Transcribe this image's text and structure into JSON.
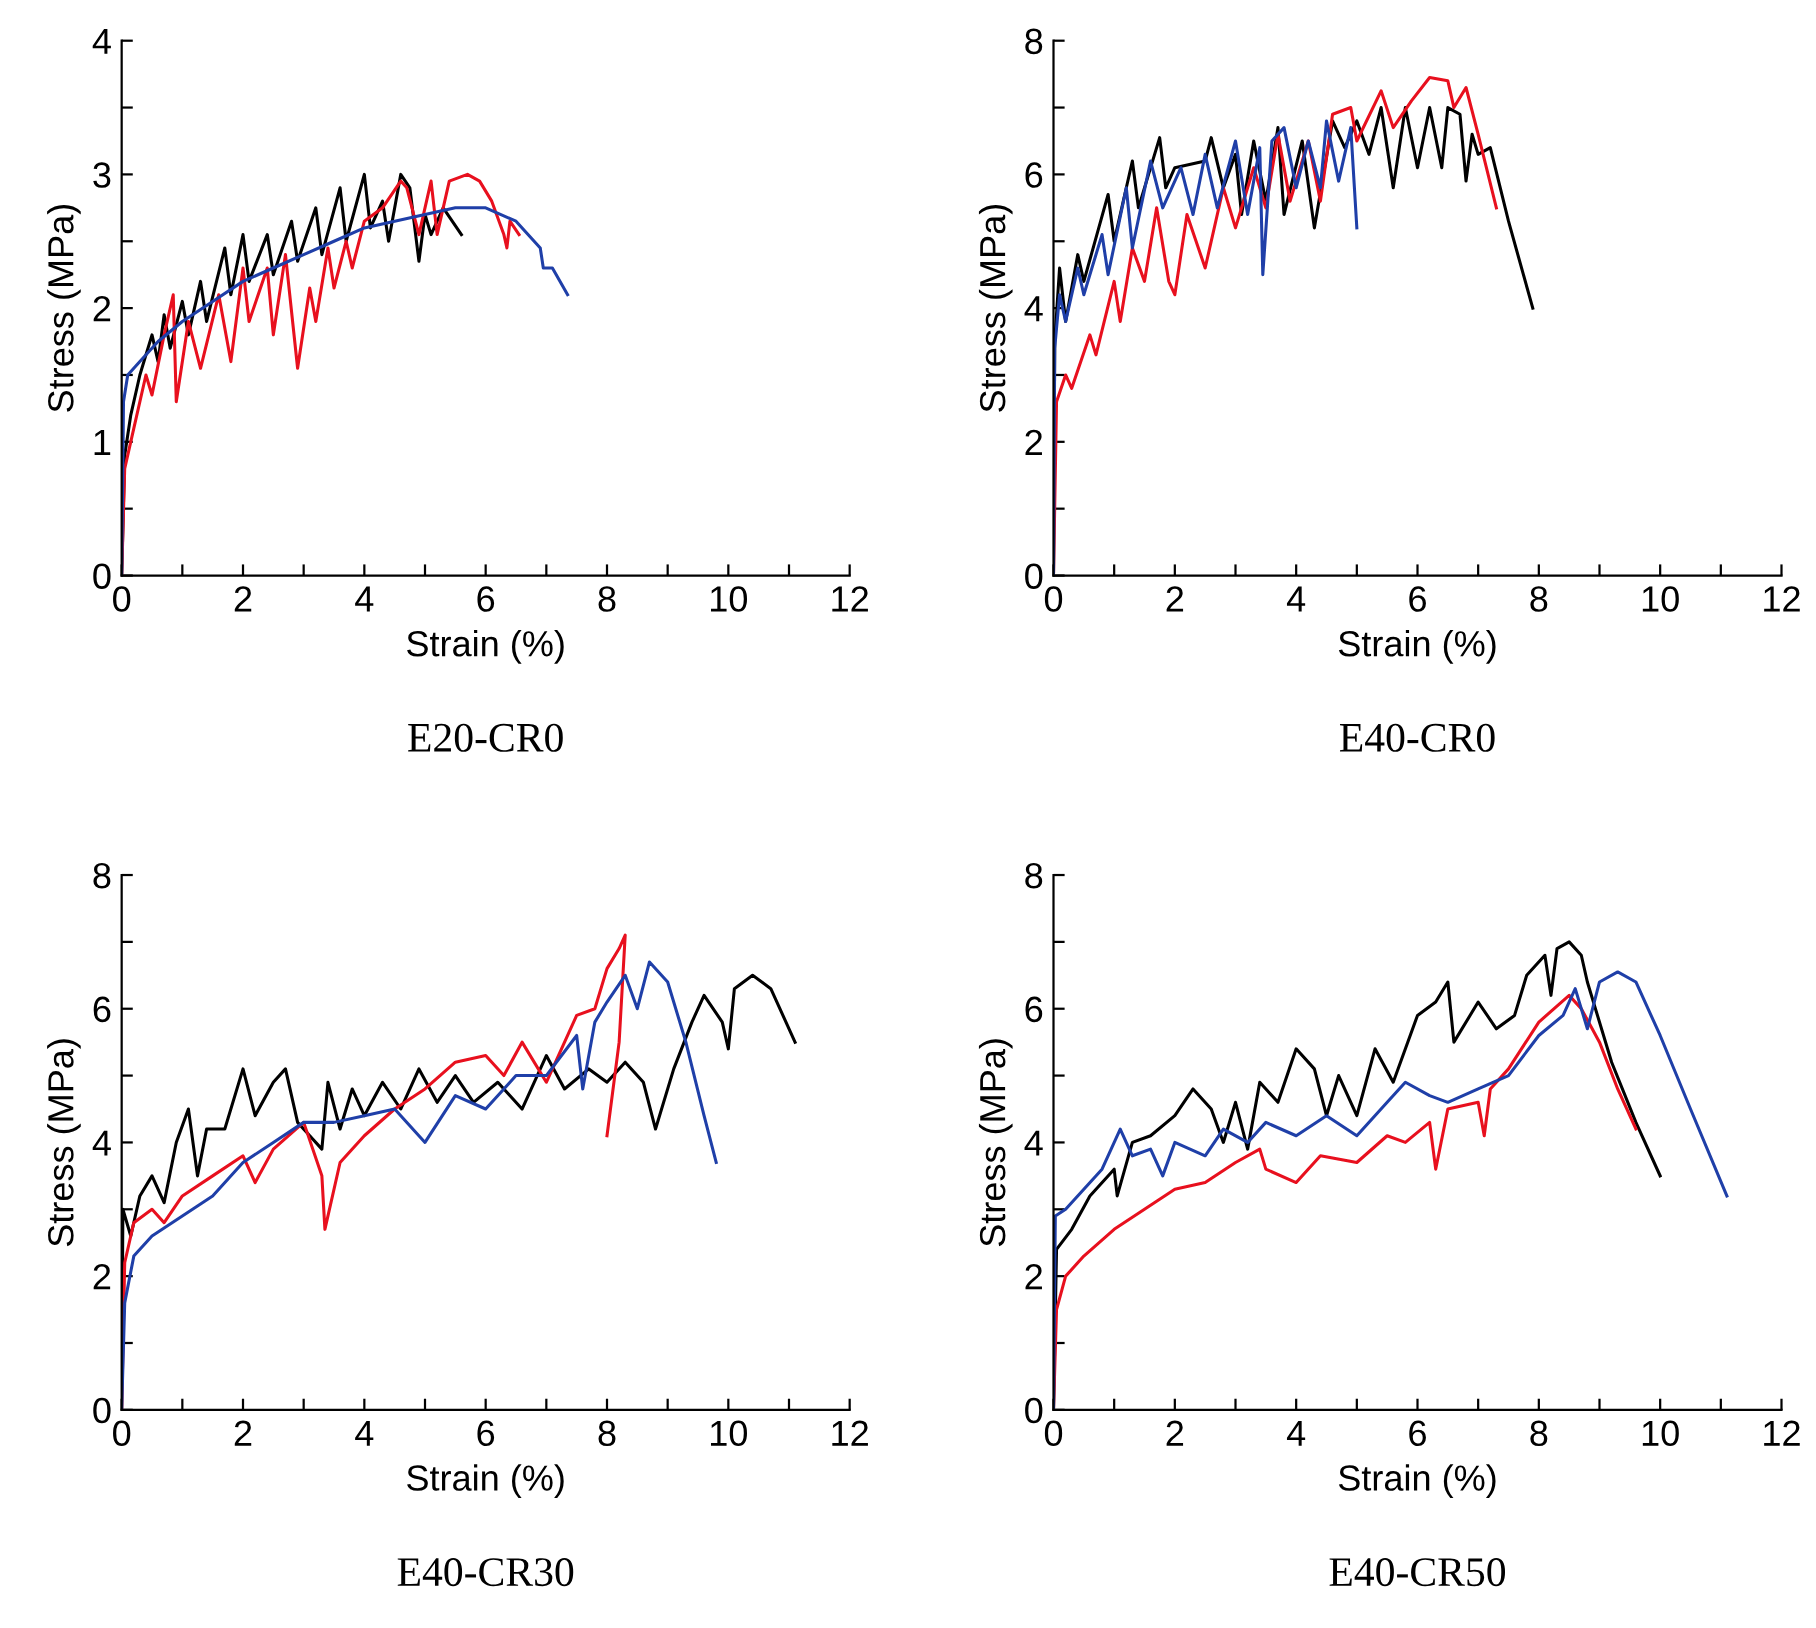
{
  "chart_data": [
    {
      "type": "line",
      "title": "E20-CR0",
      "xlabel": "Strain (%)",
      "ylabel": "Stress (MPa)",
      "xlim": [
        0,
        12
      ],
      "ylim": [
        0,
        4
      ],
      "xticks": [
        0,
        {
          "value": 1,
          "label": null
        },
        2,
        {
          "value": 3,
          "label": null
        },
        4,
        {
          "value": 5,
          "label": null
        },
        6,
        {
          "value": 7,
          "label": null
        },
        8,
        {
          "value": 9,
          "label": null
        },
        10,
        {
          "value": 11,
          "label": null
        },
        12
      ],
      "yticks": [
        0,
        {
          "value": 0.5,
          "label": null
        },
        1,
        {
          "value": 1.5,
          "label": null
        },
        2,
        {
          "value": 2.5,
          "label": null
        },
        3,
        {
          "value": 3.5,
          "label": null
        },
        4
      ],
      "grid": false,
      "legend": false,
      "marker": "none",
      "line_style": "solid",
      "series": [
        {
          "color": "#000000",
          "x": [
            0,
            0.05,
            0.15,
            0.3,
            0.5,
            0.6,
            0.7,
            0.8,
            1.0,
            1.1,
            1.3,
            1.4,
            1.7,
            1.8,
            2.0,
            2.1,
            2.4,
            2.5,
            2.8,
            2.9,
            3.2,
            3.3,
            3.6,
            3.7,
            4.0,
            4.1,
            4.3,
            4.4,
            4.6,
            4.75,
            4.9,
            5.0,
            5.1,
            5.3,
            5.6
          ],
          "values": [
            0,
            0.9,
            1.2,
            1.5,
            1.8,
            1.6,
            1.95,
            1.7,
            2.05,
            1.8,
            2.2,
            1.9,
            2.45,
            2.1,
            2.55,
            2.2,
            2.55,
            2.25,
            2.65,
            2.35,
            2.75,
            2.4,
            2.9,
            2.5,
            3.0,
            2.6,
            2.8,
            2.5,
            3.0,
            2.9,
            2.35,
            2.7,
            2.55,
            2.75,
            2.55
          ]
        },
        {
          "color": "#e8101e",
          "x": [
            0,
            0.05,
            0.2,
            0.4,
            0.5,
            0.7,
            0.85,
            0.9,
            1.1,
            1.3,
            1.6,
            1.8,
            2.0,
            2.1,
            2.4,
            2.5,
            2.7,
            2.9,
            3.1,
            3.2,
            3.4,
            3.5,
            3.7,
            3.8,
            4.0,
            4.3,
            4.6,
            4.7,
            4.9,
            5.1,
            5.2,
            5.4,
            5.7,
            5.9,
            6.1,
            6.3,
            6.35,
            6.4,
            6.55
          ],
          "values": [
            0,
            0.8,
            1.1,
            1.5,
            1.35,
            1.8,
            2.1,
            1.3,
            1.9,
            1.55,
            2.1,
            1.6,
            2.3,
            1.9,
            2.3,
            1.8,
            2.4,
            1.55,
            2.15,
            1.9,
            2.45,
            2.15,
            2.5,
            2.3,
            2.65,
            2.75,
            2.95,
            2.9,
            2.55,
            2.95,
            2.55,
            2.95,
            3.0,
            2.95,
            2.8,
            2.55,
            2.45,
            2.65,
            2.55
          ]
        },
        {
          "color": "#1f3fa8",
          "x": [
            0,
            0.03,
            0.1,
            0.3,
            0.6,
            1.0,
            1.5,
            2.0,
            2.5,
            3.0,
            3.5,
            4.0,
            4.5,
            5.0,
            5.5,
            6.0,
            6.5,
            6.9,
            6.95,
            7.1,
            7.35
          ],
          "values": [
            0,
            1.3,
            1.5,
            1.6,
            1.75,
            1.9,
            2.05,
            2.2,
            2.3,
            2.4,
            2.5,
            2.6,
            2.65,
            2.7,
            2.75,
            2.75,
            2.65,
            2.45,
            2.3,
            2.3,
            2.1
          ]
        }
      ]
    },
    {
      "type": "line",
      "title": "E40-CR0",
      "xlabel": "Strain (%)",
      "ylabel": "Stress (MPa)",
      "xlim": [
        0,
        12
      ],
      "ylim": [
        0,
        8
      ],
      "xticks": [
        0,
        {
          "value": 1,
          "label": null
        },
        2,
        {
          "value": 3,
          "label": null
        },
        4,
        {
          "value": 5,
          "label": null
        },
        6,
        {
          "value": 7,
          "label": null
        },
        8,
        {
          "value": 9,
          "label": null
        },
        10,
        {
          "value": 11,
          "label": null
        },
        12
      ],
      "yticks": [
        0,
        {
          "value": 1,
          "label": null
        },
        2,
        {
          "value": 3,
          "label": null
        },
        4,
        {
          "value": 5,
          "label": null
        },
        6,
        {
          "value": 7,
          "label": null
        },
        8
      ],
      "grid": false,
      "legend": false,
      "marker": "none",
      "line_style": "solid",
      "series": [
        {
          "color": "#000000",
          "x": [
            0,
            0.02,
            0.1,
            0.2,
            0.4,
            0.5,
            0.9,
            1.0,
            1.3,
            1.4,
            1.75,
            1.85,
            2.0,
            2.5,
            2.6,
            2.8,
            3.0,
            3.1,
            3.3,
            3.5,
            3.7,
            3.8,
            4.1,
            4.3,
            4.6,
            4.8,
            5.0,
            5.2,
            5.4,
            5.6,
            5.8,
            6.0,
            6.2,
            6.4,
            6.5,
            6.7,
            6.8,
            6.9,
            7.0,
            7.2,
            7.5,
            7.9
          ],
          "values": [
            0,
            3.5,
            4.6,
            3.8,
            4.8,
            4.4,
            5.7,
            5.0,
            6.2,
            5.5,
            6.55,
            5.8,
            6.1,
            6.2,
            6.55,
            5.8,
            6.3,
            5.4,
            6.5,
            5.6,
            6.7,
            5.4,
            6.5,
            5.2,
            6.8,
            6.4,
            6.8,
            6.3,
            7.0,
            5.8,
            7.0,
            6.1,
            7.0,
            6.1,
            7.0,
            6.9,
            5.9,
            6.6,
            6.3,
            6.4,
            5.3,
            4.0
          ]
        },
        {
          "color": "#e8101e",
          "x": [
            0,
            0.05,
            0.2,
            0.3,
            0.6,
            0.7,
            1.0,
            1.1,
            1.3,
            1.5,
            1.7,
            1.9,
            2.0,
            2.2,
            2.5,
            2.8,
            3.0,
            3.3,
            3.5,
            3.7,
            3.9,
            4.2,
            4.4,
            4.6,
            4.9,
            5.0,
            5.4,
            5.6,
            5.9,
            6.2,
            6.5,
            6.6,
            6.8,
            7.0,
            7.3
          ],
          "values": [
            0,
            2.6,
            3.0,
            2.8,
            3.6,
            3.3,
            4.4,
            3.8,
            4.9,
            4.4,
            5.5,
            4.4,
            4.2,
            5.4,
            4.6,
            5.8,
            5.2,
            6.1,
            5.5,
            6.6,
            5.6,
            6.5,
            5.6,
            6.9,
            7.0,
            6.5,
            7.25,
            6.7,
            7.1,
            7.45,
            7.4,
            7.0,
            7.3,
            6.6,
            5.5
          ]
        },
        {
          "color": "#1f3fa8",
          "x": [
            0,
            0.02,
            0.1,
            0.2,
            0.4,
            0.5,
            0.8,
            0.9,
            1.2,
            1.3,
            1.6,
            1.8,
            2.1,
            2.3,
            2.5,
            2.7,
            3.0,
            3.2,
            3.4,
            3.45,
            3.6,
            3.8,
            4.0,
            4.2,
            4.4,
            4.5,
            4.7,
            4.9,
            5.0
          ],
          "values": [
            0,
            3.4,
            4.2,
            3.8,
            4.6,
            4.2,
            5.1,
            4.5,
            5.8,
            4.9,
            6.2,
            5.5,
            6.1,
            5.4,
            6.3,
            5.5,
            6.5,
            5.4,
            6.4,
            4.5,
            6.5,
            6.7,
            5.8,
            6.5,
            5.8,
            6.8,
            5.9,
            6.7,
            5.2
          ]
        }
      ]
    },
    {
      "type": "line",
      "title": "E40-CR30",
      "xlabel": "Strain (%)",
      "ylabel": "Stress (MPa)",
      "xlim": [
        0,
        12
      ],
      "ylim": [
        0,
        8
      ],
      "xticks": [
        0,
        {
          "value": 1,
          "label": null
        },
        2,
        {
          "value": 3,
          "label": null
        },
        4,
        {
          "value": 5,
          "label": null
        },
        6,
        {
          "value": 7,
          "label": null
        },
        8,
        {
          "value": 9,
          "label": null
        },
        10,
        {
          "value": 11,
          "label": null
        },
        12
      ],
      "yticks": [
        0,
        {
          "value": 1,
          "label": null
        },
        2,
        {
          "value": 3,
          "label": null
        },
        4,
        {
          "value": 5,
          "label": null
        },
        6,
        {
          "value": 7,
          "label": null
        },
        8
      ],
      "grid": false,
      "legend": false,
      "marker": "none",
      "line_style": "solid",
      "series": [
        {
          "color": "#000000",
          "x": [
            0,
            0.02,
            0.15,
            0.3,
            0.5,
            0.7,
            0.9,
            1.1,
            1.25,
            1.4,
            1.7,
            2.0,
            2.2,
            2.5,
            2.7,
            2.9,
            3.1,
            3.3,
            3.4,
            3.6,
            3.8,
            4.0,
            4.3,
            4.6,
            4.9,
            5.2,
            5.5,
            5.8,
            6.2,
            6.6,
            7.0,
            7.3,
            7.7,
            8.0,
            8.3,
            8.6,
            8.8,
            9.1,
            9.4,
            9.6,
            9.9,
            10.0,
            10.1,
            10.4,
            10.7,
            11.1
          ],
          "values": [
            0,
            3.0,
            2.6,
            3.2,
            3.5,
            3.1,
            4.0,
            4.5,
            3.5,
            4.2,
            4.2,
            5.1,
            4.4,
            4.9,
            5.1,
            4.3,
            4.1,
            3.9,
            4.9,
            4.2,
            4.8,
            4.4,
            4.9,
            4.5,
            5.1,
            4.6,
            5.0,
            4.6,
            4.9,
            4.5,
            5.3,
            4.8,
            5.1,
            4.9,
            5.2,
            4.9,
            4.2,
            5.1,
            5.8,
            6.2,
            5.8,
            5.4,
            6.3,
            6.5,
            6.3,
            5.5
          ]
        },
        {
          "color": "#e8101e",
          "x": [
            0,
            0.05,
            0.2,
            0.5,
            0.7,
            1.0,
            1.5,
            2.0,
            2.2,
            2.5,
            3.0,
            3.3,
            3.35,
            3.6,
            4.0,
            4.5,
            5.0,
            5.5,
            6.0,
            6.3,
            6.6,
            7.0,
            7.5,
            7.8,
            8.0,
            8.2,
            8.3,
            8.2,
            8.0
          ],
          "values": [
            0,
            2.2,
            2.8,
            3.0,
            2.8,
            3.2,
            3.5,
            3.8,
            3.4,
            3.9,
            4.3,
            3.5,
            2.7,
            3.7,
            4.1,
            4.5,
            4.8,
            5.2,
            5.3,
            5.0,
            5.5,
            4.9,
            5.9,
            6.0,
            6.6,
            6.9,
            7.1,
            5.5,
            4.1
          ]
        },
        {
          "color": "#1f3fa8",
          "x": [
            0,
            0.05,
            0.2,
            0.5,
            1.0,
            1.5,
            2.0,
            2.5,
            3.0,
            3.5,
            4.0,
            4.5,
            5.0,
            5.5,
            6.0,
            6.5,
            7.0,
            7.5,
            7.6,
            7.8,
            8.0,
            8.3,
            8.5,
            8.7,
            9.0,
            9.3,
            9.6,
            9.8
          ],
          "values": [
            0,
            1.6,
            2.3,
            2.6,
            2.9,
            3.2,
            3.7,
            4.0,
            4.3,
            4.3,
            4.4,
            4.5,
            4.0,
            4.7,
            4.5,
            5.0,
            5.0,
            5.6,
            4.8,
            5.8,
            6.1,
            6.5,
            6.0,
            6.7,
            6.4,
            5.5,
            4.4,
            3.7
          ]
        }
      ]
    },
    {
      "type": "line",
      "title": "E40-CR50",
      "xlabel": "Strain (%)",
      "ylabel": "Stress (MPa)",
      "xlim": [
        0,
        12
      ],
      "ylim": [
        0,
        8
      ],
      "xticks": [
        0,
        {
          "value": 1,
          "label": null
        },
        2,
        {
          "value": 3,
          "label": null
        },
        4,
        {
          "value": 5,
          "label": null
        },
        6,
        {
          "value": 7,
          "label": null
        },
        8,
        {
          "value": 9,
          "label": null
        },
        10,
        {
          "value": 11,
          "label": null
        },
        12
      ],
      "yticks": [
        0,
        {
          "value": 1,
          "label": null
        },
        2,
        {
          "value": 3,
          "label": null
        },
        4,
        {
          "value": 5,
          "label": null
        },
        6,
        {
          "value": 7,
          "label": null
        },
        8
      ],
      "grid": false,
      "legend": false,
      "marker": "none",
      "line_style": "solid",
      "series": [
        {
          "color": "#000000",
          "x": [
            0,
            0.05,
            0.3,
            0.6,
            1.0,
            1.05,
            1.3,
            1.6,
            2.0,
            2.3,
            2.6,
            2.8,
            3.0,
            3.2,
            3.4,
            3.7,
            4.0,
            4.3,
            4.5,
            4.7,
            5.0,
            5.3,
            5.6,
            6.0,
            6.3,
            6.5,
            6.6,
            7.0,
            7.3,
            7.6,
            7.8,
            8.1,
            8.2,
            8.3,
            8.5,
            8.7,
            8.8,
            9.2,
            9.6,
            10.0
          ],
          "values": [
            0,
            2.4,
            2.7,
            3.2,
            3.6,
            3.2,
            4.0,
            4.1,
            4.4,
            4.8,
            4.5,
            4.0,
            4.6,
            3.9,
            4.9,
            4.6,
            5.4,
            5.1,
            4.4,
            5.0,
            4.4,
            5.4,
            4.9,
            5.9,
            6.1,
            6.4,
            5.5,
            6.1,
            5.7,
            5.9,
            6.5,
            6.8,
            6.2,
            6.9,
            7.0,
            6.8,
            6.4,
            5.2,
            4.3,
            3.5
          ]
        },
        {
          "color": "#e8101e",
          "x": [
            0,
            0.05,
            0.2,
            0.5,
            1.0,
            1.5,
            2.0,
            2.5,
            3.0,
            3.4,
            3.5,
            4.0,
            4.4,
            5.0,
            5.5,
            5.8,
            6.2,
            6.3,
            6.5,
            7.0,
            7.1,
            7.2,
            7.5,
            8.0,
            8.5,
            8.7,
            9.0,
            9.3,
            9.6
          ],
          "values": [
            0,
            1.5,
            2.0,
            2.3,
            2.7,
            3.0,
            3.3,
            3.4,
            3.7,
            3.9,
            3.6,
            3.4,
            3.8,
            3.7,
            4.1,
            4.0,
            4.3,
            3.6,
            4.5,
            4.6,
            4.1,
            4.8,
            5.1,
            5.8,
            6.2,
            6.0,
            5.5,
            4.8,
            4.2
          ]
        },
        {
          "color": "#1f3fa8",
          "x": [
            0,
            0.03,
            0.2,
            0.5,
            0.8,
            1.1,
            1.3,
            1.6,
            1.8,
            2.0,
            2.5,
            2.8,
            3.2,
            3.5,
            4.0,
            4.5,
            5.0,
            5.5,
            5.8,
            6.2,
            6.5,
            7.0,
            7.5,
            8.0,
            8.4,
            8.6,
            8.8,
            9.0,
            9.3,
            9.6,
            10.0,
            10.5,
            11.1
          ],
          "values": [
            0,
            2.9,
            3.0,
            3.3,
            3.6,
            4.2,
            3.8,
            3.9,
            3.5,
            4.0,
            3.8,
            4.2,
            4.0,
            4.3,
            4.1,
            4.4,
            4.1,
            4.6,
            4.9,
            4.7,
            4.6,
            4.8,
            5.0,
            5.6,
            5.9,
            6.3,
            5.7,
            6.4,
            6.55,
            6.4,
            5.6,
            4.5,
            3.2
          ]
        }
      ]
    }
  ]
}
